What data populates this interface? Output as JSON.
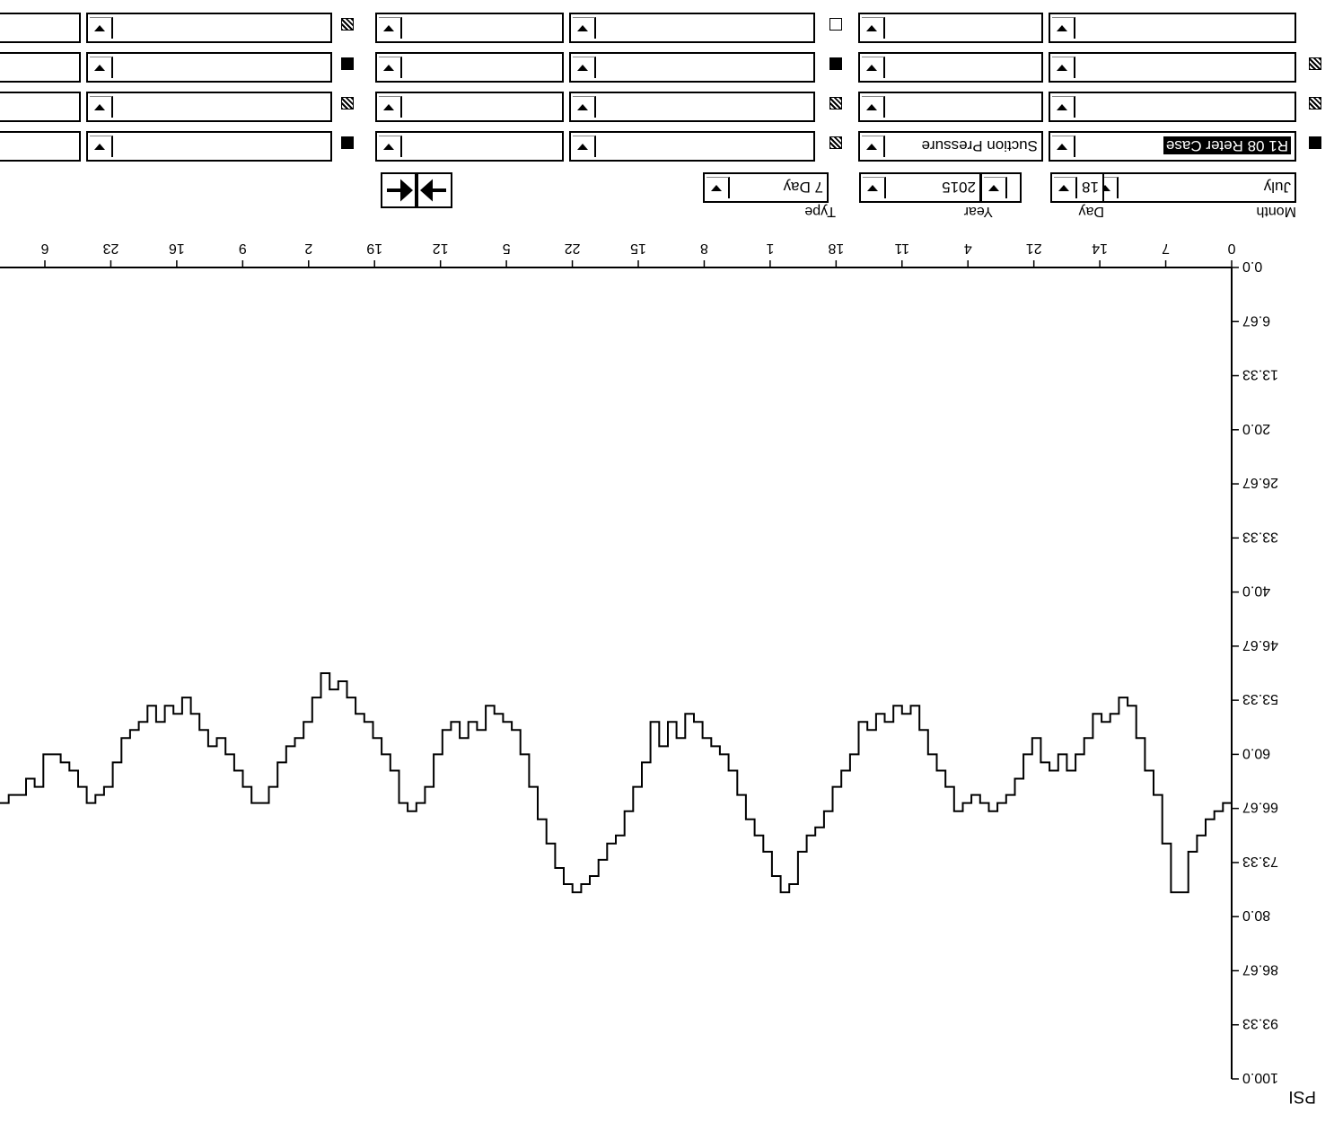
{
  "controls": {
    "month_label": "Month",
    "month_value": "July",
    "day_label": "Day",
    "day_value": "18",
    "year_label": "Year",
    "year_value": "2015",
    "type_label": "Type",
    "type_value": "7 Day",
    "nav": {
      "prev_icon": "arrow-left-icon",
      "next_icon": "arrow-right-icon"
    }
  },
  "series_selectors": {
    "row1": {
      "circuit": "R1 08 Reter Case",
      "measure": "Suction Pressure"
    }
  },
  "chart_data": {
    "type": "line",
    "ylabel": "PSI",
    "ylim": [
      0,
      100
    ],
    "y_ticks": [
      "0.0",
      "6.67",
      "13.33",
      "20.0",
      "26.67",
      "33.33",
      "40.0",
      "46.67",
      "53.33",
      "60.0",
      "66.67",
      "73.33",
      "80.0",
      "86.67",
      "93.33",
      "100.0"
    ],
    "x_ticks": [
      "0",
      "7",
      "14",
      "21",
      "4",
      "11",
      "18",
      "1",
      "8",
      "15",
      "22",
      "5",
      "12",
      "19",
      "2",
      "9",
      "16",
      "23",
      "6"
    ],
    "series": [
      {
        "values": [
          66,
          67,
          68,
          70,
          72,
          77,
          77,
          71,
          65,
          62,
          58,
          54,
          53,
          55,
          56,
          55,
          58,
          60,
          62,
          60,
          62,
          61,
          58,
          60,
          63,
          65,
          66,
          67,
          66,
          65,
          66,
          67,
          64,
          62,
          60,
          57,
          54,
          55,
          54,
          56,
          55,
          57,
          56,
          60,
          62,
          64,
          67,
          69,
          70,
          72,
          76,
          77,
          75,
          72,
          70,
          68,
          65,
          62,
          60,
          59,
          58,
          56,
          55,
          58,
          56,
          59,
          56,
          61,
          64,
          67,
          70,
          71,
          73,
          75,
          76,
          77,
          76,
          74,
          71,
          68,
          64,
          60,
          57,
          56,
          55,
          54,
          57,
          56,
          58,
          56,
          57,
          60,
          64,
          66,
          67,
          66,
          62,
          60,
          58,
          56,
          55,
          53,
          51,
          52,
          50,
          53,
          56,
          58,
          59,
          61,
          64,
          66,
          66,
          64,
          62,
          60,
          58,
          59,
          57,
          55,
          53,
          55,
          54,
          56,
          54,
          56,
          57,
          58,
          61,
          64,
          65,
          66,
          64,
          62,
          61,
          60,
          60,
          64,
          63,
          65,
          65,
          66
        ]
      }
    ]
  }
}
